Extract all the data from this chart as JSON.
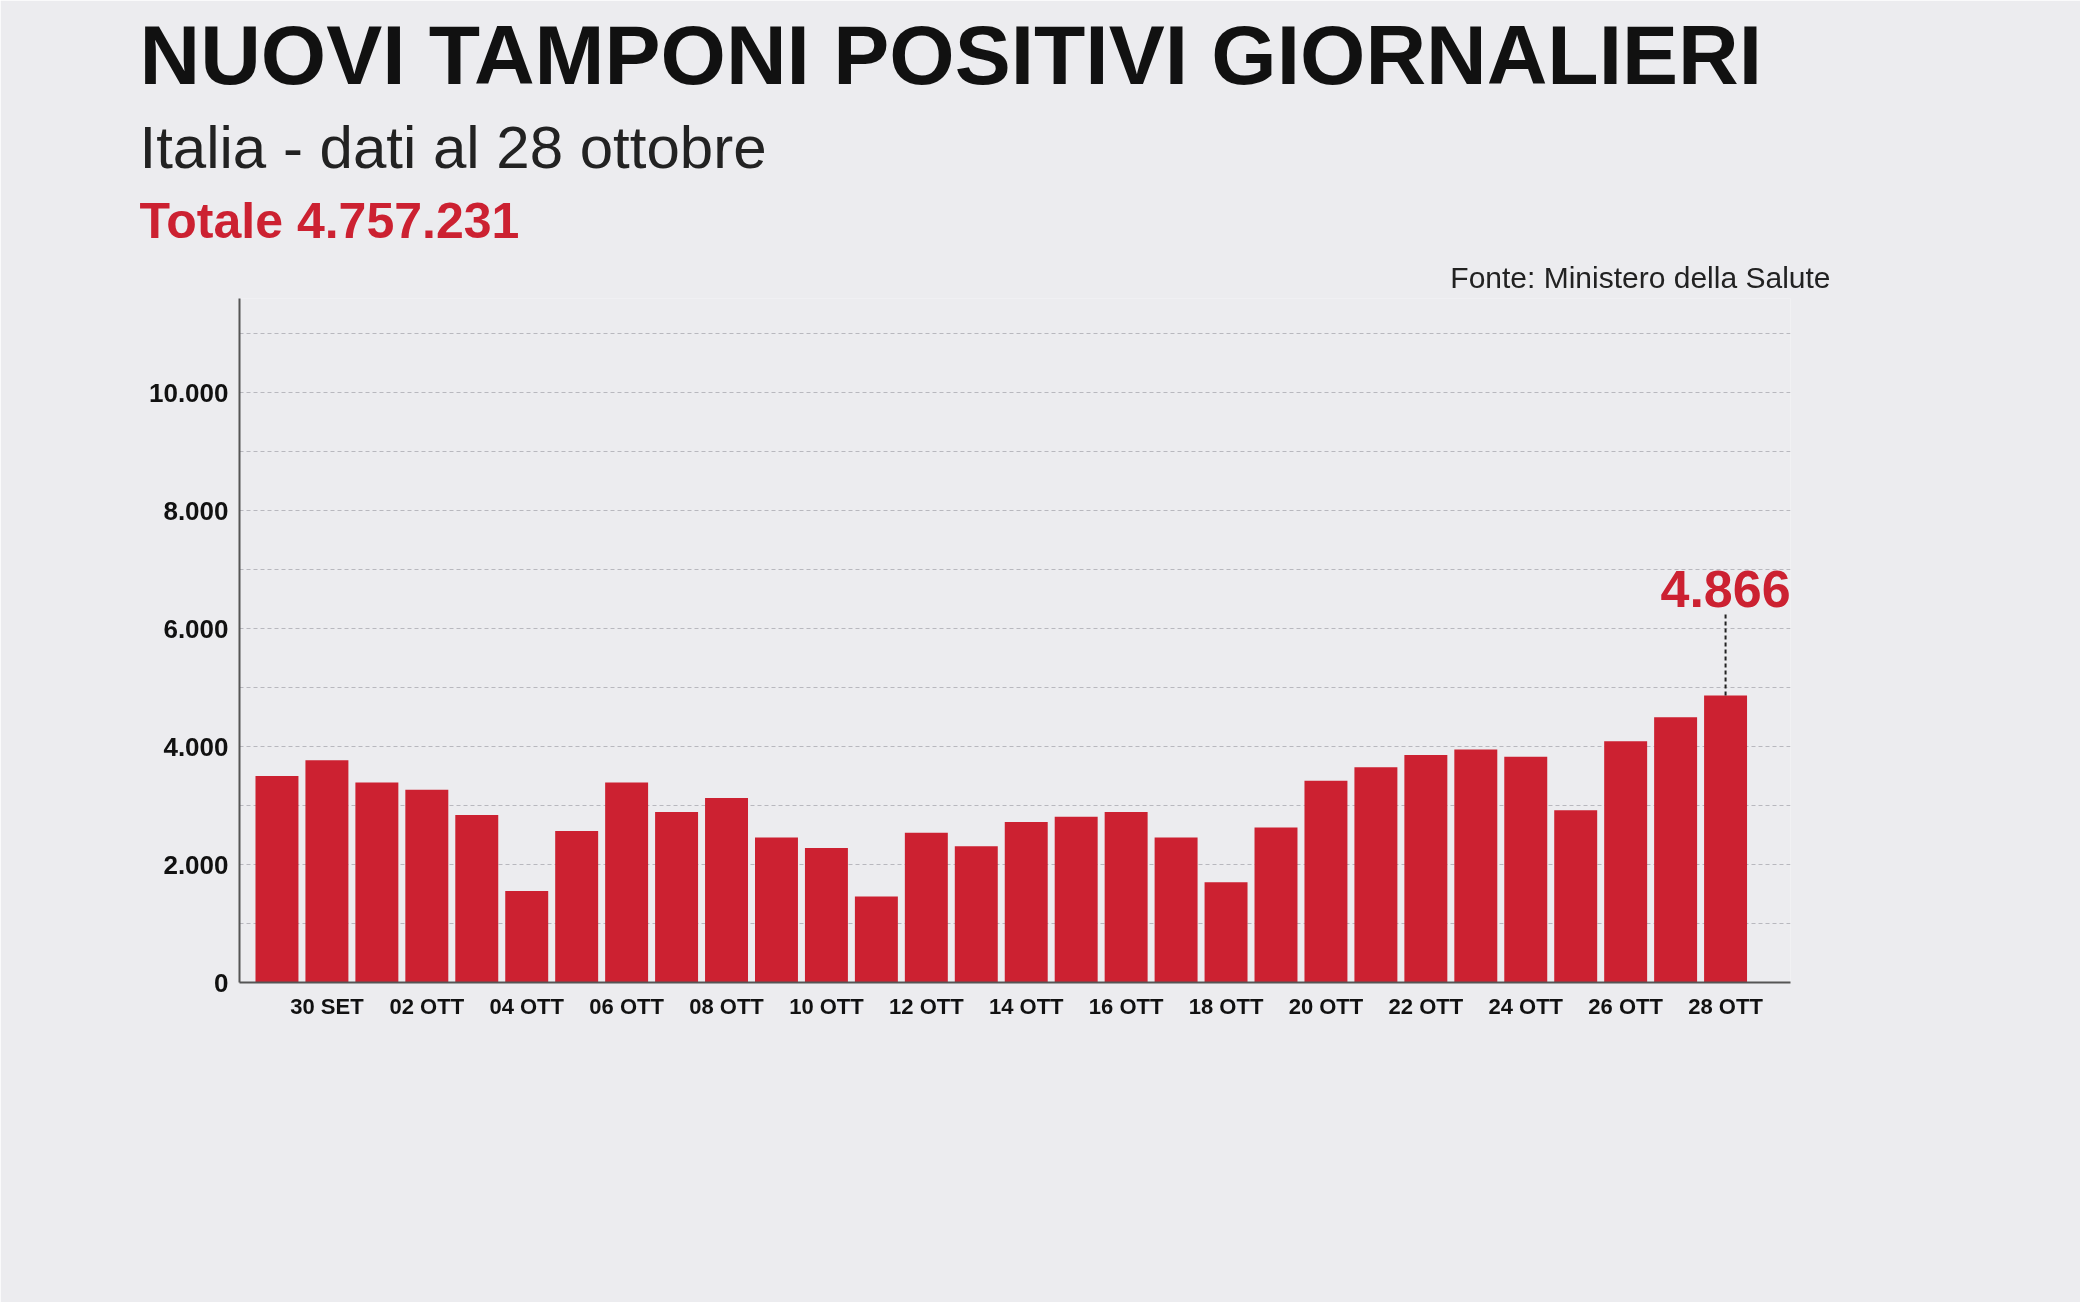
{
  "chart_data": {
    "type": "bar",
    "title": "NUOVI TAMPONI POSITIVI GIORNALIERI",
    "subtitle": "Italia - dati al 28 ottobre",
    "annotations": [
      "Totale 4.757.231",
      "Fonte: Ministero della Salute"
    ],
    "categories": [
      null,
      "30 SET",
      null,
      "02 OTT",
      null,
      "04 OTT",
      null,
      "06 OTT",
      null,
      "08 OTT",
      null,
      "10 OTT",
      null,
      "12 OTT",
      null,
      "14 OTT",
      null,
      "16 OTT",
      null,
      "18 OTT",
      null,
      "20 OTT",
      null,
      "22 OTT",
      null,
      "24 OTT",
      null,
      "26 OTT",
      null,
      "28 OTT"
    ],
    "values": [
      3500,
      3770,
      3390,
      3270,
      2840,
      1550,
      2570,
      3390,
      2890,
      3130,
      2460,
      2280,
      1460,
      2540,
      2310,
      2720,
      2810,
      2890,
      2460,
      1700,
      2630,
      3420,
      3650,
      3860,
      3950,
      3830,
      2920,
      4090,
      4500,
      4866
    ],
    "value_labels": [
      null,
      null,
      null,
      null,
      null,
      null,
      null,
      null,
      null,
      null,
      null,
      null,
      null,
      null,
      null,
      null,
      null,
      null,
      null,
      null,
      null,
      null,
      null,
      null,
      null,
      null,
      null,
      null,
      null,
      "4.866"
    ],
    "color": "#cc2131",
    "ylim": [
      0,
      11600
    ],
    "yticks": [
      {
        "value": 0,
        "label": "0"
      },
      {
        "value": 1000,
        "label": null
      },
      {
        "value": 2000,
        "label": "2.000"
      },
      {
        "value": 3000,
        "label": null
      },
      {
        "value": 4000,
        "label": "4.000"
      },
      {
        "value": 5000,
        "label": null
      },
      {
        "value": 6000,
        "label": "6.000"
      },
      {
        "value": 7000,
        "label": null
      },
      {
        "value": 8000,
        "label": "8.000"
      },
      {
        "value": 9000,
        "label": null
      },
      {
        "value": 10000,
        "label": "10.000"
      },
      {
        "value": 11000,
        "label": null
      }
    ],
    "grid": "y"
  }
}
